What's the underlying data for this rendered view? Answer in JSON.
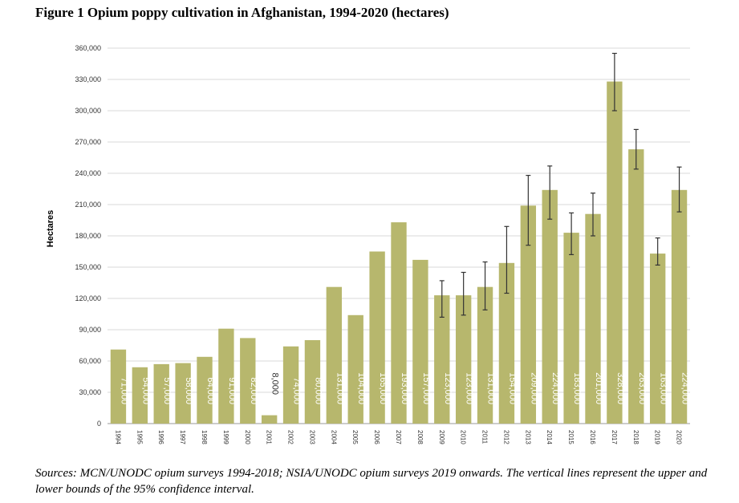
{
  "title": "Figure 1 Opium poppy cultivation in Afghanistan, 1994-2020 (hectares)",
  "note": "Sources: MCN/UNODC opium surveys 1994-2018; NSIA/UNODC opium surveys 2019 onwards. The vertical lines represent the upper and lower bounds of the 95% confidence interval.",
  "chart_data": {
    "type": "bar",
    "title": "",
    "xlabel": "",
    "ylabel": "Hectares",
    "ylim": [
      0,
      360000
    ],
    "yticks": [
      "0",
      "30,000",
      "60,000",
      "90,000",
      "120,000",
      "150,000",
      "180,000",
      "210,000",
      "240,000",
      "270,000",
      "300,000",
      "330,000",
      "360,000"
    ],
    "grid": true,
    "bar_color": "#b7b76d",
    "categories": [
      "1994",
      "1995",
      "1996",
      "1997",
      "1998",
      "1999",
      "2000",
      "2001",
      "2002",
      "2003",
      "2004",
      "2005",
      "2006",
      "2007",
      "2008",
      "2009",
      "2010",
      "2011",
      "2012",
      "2013",
      "2014",
      "2015",
      "2016",
      "2017",
      "2018",
      "2019",
      "2020"
    ],
    "values": [
      71000,
      54000,
      57000,
      58000,
      64000,
      91000,
      82000,
      8000,
      74000,
      80000,
      131000,
      104000,
      165000,
      193000,
      157000,
      123000,
      123000,
      131000,
      154000,
      209000,
      224000,
      183000,
      201000,
      328000,
      263000,
      163000,
      224000
    ],
    "labels": [
      "71,000",
      "54,000",
      "57,000",
      "58,000",
      "64,000",
      "91,000",
      "82,000",
      "8,000",
      "74,000",
      "80,000",
      "131,000",
      "104,000",
      "165,000",
      "193,000",
      "157,000",
      "123,000",
      "123,000",
      "131,000",
      "154,000",
      "209,000",
      "224,000",
      "183,000",
      "201,000",
      "328,000",
      "263,000",
      "163,000",
      "224,000"
    ],
    "ci": [
      null,
      null,
      null,
      null,
      null,
      null,
      null,
      null,
      null,
      null,
      null,
      null,
      null,
      null,
      null,
      [
        102000,
        137000
      ],
      [
        104000,
        145000
      ],
      [
        109000,
        155000
      ],
      [
        125000,
        189000
      ],
      [
        171000,
        238000
      ],
      [
        196000,
        247000
      ],
      [
        162000,
        202000
      ],
      [
        180000,
        221000
      ],
      [
        300000,
        355000
      ],
      [
        244000,
        282000
      ],
      [
        152000,
        178000
      ],
      [
        203000,
        246000
      ]
    ]
  }
}
